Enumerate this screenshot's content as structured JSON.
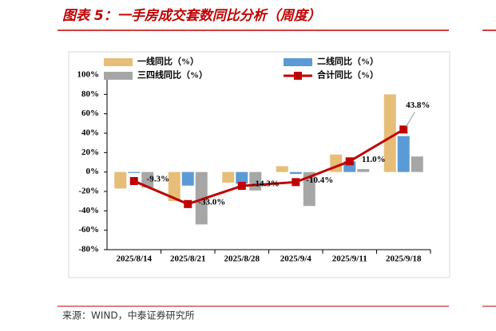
{
  "header": {
    "title": "图表 5：一手房成交套数同比分析（周度）"
  },
  "chart_data": {
    "type": "bar_line",
    "categories": [
      "2025/8/14",
      "2025/8/21",
      "2025/8/28",
      "2025/9/4",
      "2025/9/11",
      "2025/9/18"
    ],
    "series": [
      {
        "name": "一线同比（%）",
        "type": "bar",
        "color": "#E6BE78",
        "values": [
          -17,
          -30,
          -11,
          6,
          18,
          80
        ]
      },
      {
        "name": "二线同比（%）",
        "type": "bar",
        "color": "#5B9BD5",
        "values": [
          -1,
          -14,
          -12,
          -2,
          11,
          37
        ]
      },
      {
        "name": "三四线同比（%）",
        "type": "bar",
        "color": "#A6A6A6",
        "values": [
          -16,
          -54,
          -19,
          -35,
          3,
          16
        ]
      },
      {
        "name": "合计同比（%）",
        "type": "line",
        "color": "#C00000",
        "values": [
          -9.3,
          -33.0,
          -14.3,
          -10.4,
          11.0,
          43.8
        ],
        "value_labels": [
          "-9.3%",
          "-33.0%",
          "-14.3%",
          "-10.4%",
          "11.0%",
          "43.8%"
        ]
      }
    ],
    "ylim": [
      -80,
      100
    ],
    "yticks": [
      {
        "value": -80,
        "label": "-80%"
      },
      {
        "value": -60,
        "label": "-60%"
      },
      {
        "value": -40,
        "label": "-40%"
      },
      {
        "value": -20,
        "label": "-20%"
      },
      {
        "value": 0,
        "label": "0%"
      },
      {
        "value": 20,
        "label": "20%"
      },
      {
        "value": 40,
        "label": "40%"
      },
      {
        "value": 60,
        "label": "60%"
      },
      {
        "value": 80,
        "label": "80%"
      },
      {
        "value": 100,
        "label": "100%"
      }
    ],
    "legend": "top"
  },
  "footer": {
    "source": "来源：WIND，中泰证券研究所"
  }
}
